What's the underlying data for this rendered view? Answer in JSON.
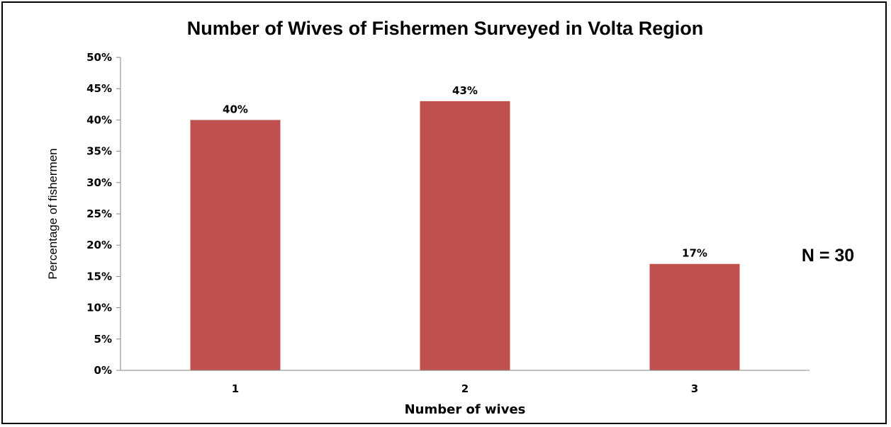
{
  "chart_data": {
    "type": "bar",
    "title": "Number of Wives of  Fishermen Surveyed in Volta Region",
    "xlabel": "Number of wives",
    "ylabel": "Percentage of fishermen",
    "categories": [
      "1",
      "2",
      "3"
    ],
    "values": [
      40,
      43,
      17
    ],
    "data_labels": [
      "40%",
      "43%",
      "17%"
    ],
    "ylim": [
      0,
      50
    ],
    "yticks": [
      0,
      5,
      10,
      15,
      20,
      25,
      30,
      35,
      40,
      45,
      50
    ],
    "ytick_labels": [
      "0%",
      "5%",
      "10%",
      "15%",
      "20%",
      "25%",
      "30%",
      "35%",
      "40%",
      "45%",
      "50%"
    ],
    "grid": false,
    "legend": "none",
    "bar_color": "#c0504d",
    "annotation": "N = 30"
  }
}
